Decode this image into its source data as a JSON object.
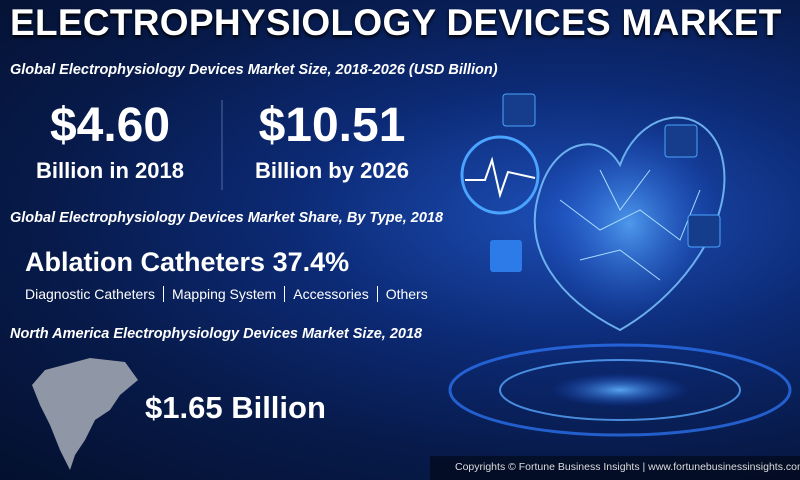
{
  "header": {
    "title": "ELECTROPHYSIOLOGY DEVICES MARKET"
  },
  "market_size": {
    "heading": "Global Electrophysiology Devices Market Size, 2018-2026 (USD Billion)",
    "stats": [
      {
        "value": "$4.60",
        "label": "Billion in 2018"
      },
      {
        "value": "$10.51",
        "label": "Billion by 2026"
      }
    ]
  },
  "market_share": {
    "heading": "Global Electrophysiology Devices Market Share, By Type, 2018",
    "leader": {
      "name": "Ablation Catheters",
      "share": "37.4%"
    },
    "others": [
      "Diagnostic Catheters",
      "Mapping System",
      "Accessories",
      "Others"
    ]
  },
  "north_america": {
    "heading": "North America Electrophysiology Devices Market Size, 2018",
    "value": "$1.65 Billion"
  },
  "footer": {
    "copyright": "Copyrights © Fortune Business Insights | www.fortunebusinessinsights.com"
  }
}
